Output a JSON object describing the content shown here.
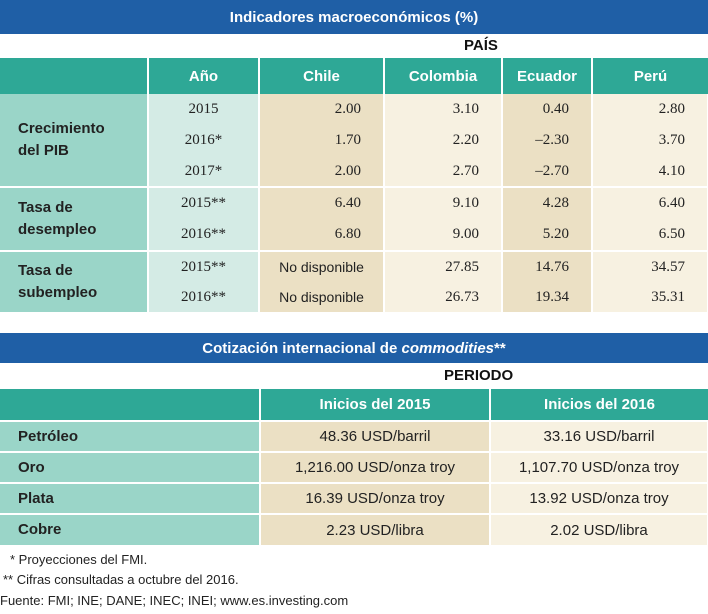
{
  "table1": {
    "title": "Indicadores macroeconómicos (%)",
    "subheader": "PAÍS",
    "headers": [
      "Año",
      "Chile",
      "Colombia",
      "Ecuador",
      "Perú"
    ],
    "groups": [
      {
        "label": "Crecimiento del PIB",
        "rows": [
          {
            "year": "2015",
            "values": [
              "2.00",
              "3.10",
              "0.40",
              "2.80"
            ]
          },
          {
            "year": "2016*",
            "values": [
              "1.70",
              "2.20",
              "–2.30",
              "3.70"
            ]
          },
          {
            "year": "2017*",
            "values": [
              "2.00",
              "2.70",
              "–2.70",
              "4.10"
            ]
          }
        ]
      },
      {
        "label": "Tasa de desempleo",
        "rows": [
          {
            "year": "2015**",
            "values": [
              "6.40",
              "9.10",
              "4.28",
              "6.40"
            ]
          },
          {
            "year": "2016**",
            "values": [
              "6.80",
              "9.00",
              "5.20",
              "6.50"
            ]
          }
        ]
      },
      {
        "label": "Tasa de subempleo",
        "rows": [
          {
            "year": "2015**",
            "values": [
              "No disponible",
              "27.85",
              "14.76",
              "34.57"
            ]
          },
          {
            "year": "2016**",
            "values": [
              "No disponible",
              "26.73",
              "19.34",
              "35.31"
            ]
          }
        ]
      }
    ]
  },
  "table2": {
    "title_prefix": "Cotización internacional de ",
    "title_italic": "commodities",
    "title_suffix": "**",
    "subheader": "PERIODO",
    "headers": [
      "Inicios del 2015",
      "Inicios del 2016"
    ],
    "rows": [
      {
        "label": "Petróleo",
        "values": [
          "48.36 USD/barril",
          "33.16 USD/barril"
        ]
      },
      {
        "label": "Oro",
        "values": [
          "1,216.00 USD/onza troy",
          "1,107.70 USD/onza troy"
        ]
      },
      {
        "label": "Plata",
        "values": [
          "16.39 USD/onza troy",
          "13.92 USD/onza troy"
        ]
      },
      {
        "label": "Cobre",
        "values": [
          "2.23 USD/libra",
          "2.02 USD/libra"
        ]
      }
    ]
  },
  "footnotes": [
    "* Proyecciones del FMI.",
    "** Cifras consultadas a octubre del 2016.",
    "Fuente: FMI; INE; DANE; INEC; INEI; www.es.investing.com"
  ]
}
